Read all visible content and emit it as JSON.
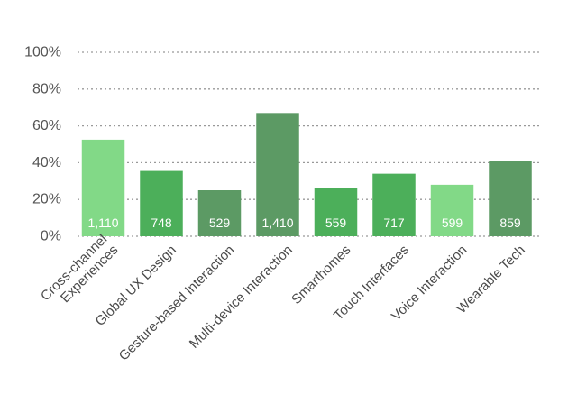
{
  "chart_data": {
    "type": "bar",
    "title": "",
    "xlabel": "",
    "ylabel": "",
    "ylim": [
      0,
      100
    ],
    "y_ticks": [
      0,
      20,
      40,
      60,
      80,
      100
    ],
    "y_tick_labels": [
      "0%",
      "20%",
      "40%",
      "60%",
      "80%",
      "100%"
    ],
    "grid": true,
    "categories": [
      "Cross-channel Experiences",
      "Global UX Design",
      "Gesture-based Interaction",
      "Multi-device Interaction",
      "Smarthomes",
      "Touch Interfaces",
      "Voice Interaction",
      "Wearable Tech"
    ],
    "category_lines": [
      [
        "Cross-channel",
        "Experiences"
      ],
      [
        "Global UX Design"
      ],
      [
        "Gesture-based Interaction"
      ],
      [
        "Multi-device Interaction"
      ],
      [
        "Smarthomes"
      ],
      [
        "Touch Interfaces"
      ],
      [
        "Voice Interaction"
      ],
      [
        "Wearable Tech"
      ]
    ],
    "values": [
      52.5,
      35.5,
      25,
      67,
      26,
      34,
      28,
      41
    ],
    "data_labels": [
      "1,110",
      "748",
      "529",
      "1,410",
      "559",
      "717",
      "599",
      "859"
    ],
    "colors": [
      "#82d987",
      "#4caf5a",
      "#5c9a64",
      "#5c9a64",
      "#4caf5a",
      "#4caf5a",
      "#82d987",
      "#5c9a64"
    ]
  }
}
